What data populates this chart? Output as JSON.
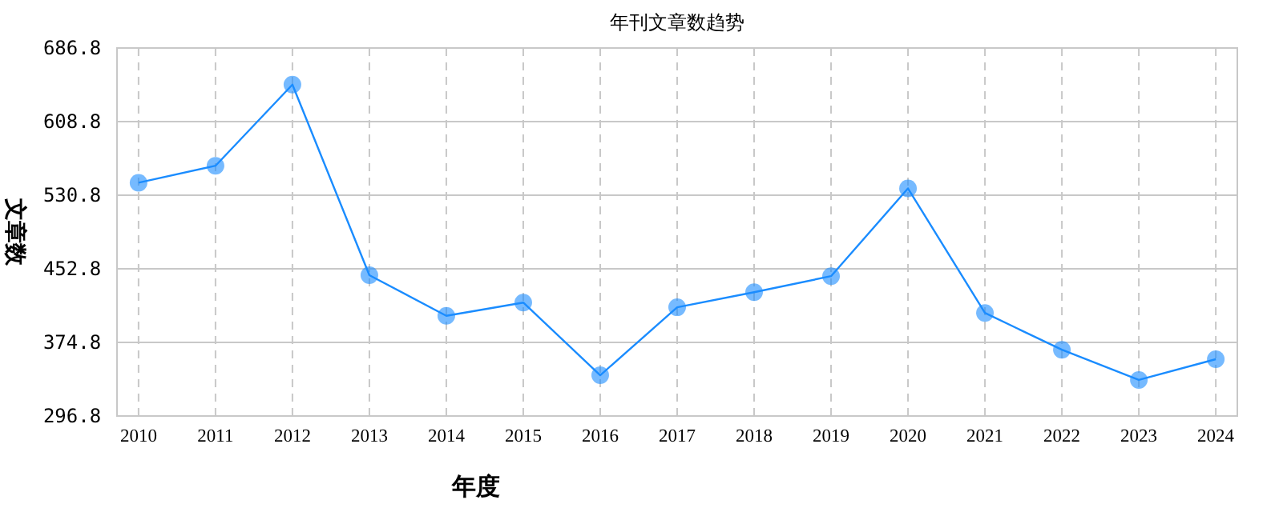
{
  "chart_data": {
    "type": "line",
    "title": "年刊文章数趋势",
    "xlabel": "年度",
    "ylabel": "文章数",
    "categories": [
      "2010",
      "2011",
      "2012",
      "2013",
      "2014",
      "2015",
      "2016",
      "2017",
      "2018",
      "2019",
      "2020",
      "2021",
      "2022",
      "2023",
      "2024"
    ],
    "series": [
      {
        "color": "#1a8cff",
        "values": [
          544,
          562,
          648,
          446,
          403,
          417,
          340,
          412,
          428,
          445,
          538,
          406,
          367,
          335,
          357
        ]
      }
    ],
    "ylim": [
      296.8,
      686.8
    ],
    "yticks": [
      296.8,
      374.8,
      452.8,
      530.8,
      608.8,
      686.8
    ],
    "grid": true,
    "marker": "circle",
    "line_style": "solid"
  }
}
